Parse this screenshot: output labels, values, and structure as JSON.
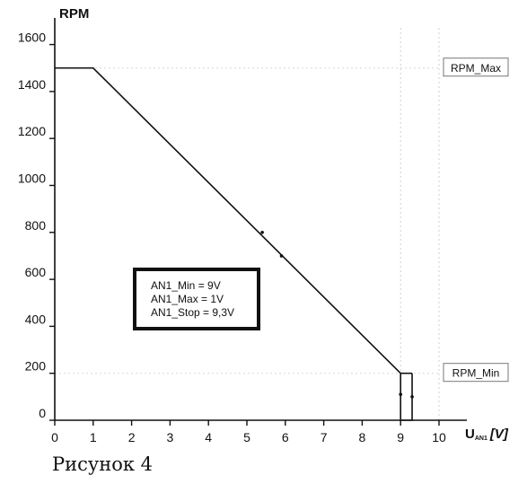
{
  "chart_data": {
    "type": "line",
    "ylabel": "RPM",
    "xlabel_main": "U",
    "xlabel_sub": "AN1",
    "xlabel_unit": "[V]",
    "xlim": [
      0,
      10.5
    ],
    "ylim": [
      0,
      1650
    ],
    "x_ticks": [
      0,
      1,
      2,
      3,
      4,
      5,
      6,
      7,
      8,
      9,
      10
    ],
    "y_ticks": [
      0,
      200,
      400,
      600,
      800,
      1000,
      1200,
      1400,
      1600
    ],
    "series": [
      {
        "x": [
          0,
          1,
          9,
          9,
          9.3,
          9.3
        ],
        "y": [
          1500,
          1500,
          200,
          0,
          0,
          200
        ]
      }
    ],
    "stop_segment": {
      "x": [
        9,
        9.3
      ],
      "y": [
        200,
        200
      ]
    },
    "markers": [
      {
        "x": 5.4,
        "y": 800
      },
      {
        "x": 5.9,
        "y": 700
      },
      {
        "x": 9.0,
        "y": 110
      },
      {
        "x": 9.3,
        "y": 100
      }
    ],
    "reference_lines": [
      {
        "label": "RPM_Max",
        "y": 1500
      },
      {
        "label": "RPM_Min",
        "y": 200
      }
    ],
    "guide_lines_x": [
      9,
      10
    ],
    "parameters": [
      "AN1_Min = 9V",
      "AN1_Max = 1V",
      "AN1_Stop = 9,3V"
    ],
    "grid": false
  },
  "caption": "Рисунок 4"
}
